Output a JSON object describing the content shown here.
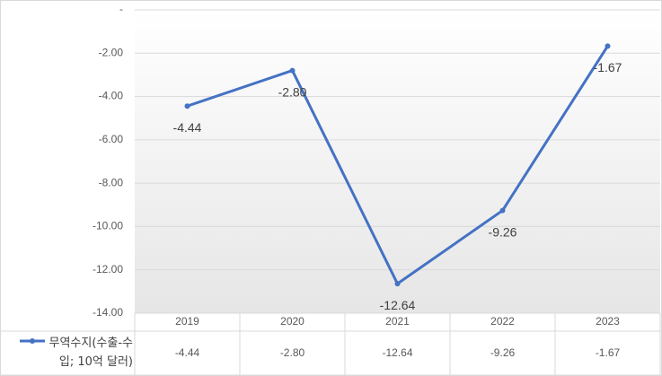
{
  "chart_data": {
    "type": "line",
    "categories": [
      "2019",
      "2020",
      "2021",
      "2022",
      "2023"
    ],
    "series": [
      {
        "name": "무역수지(수출-수입; 10억 달러)",
        "color": "#4472c4",
        "values": [
          -4.44,
          -2.8,
          -12.64,
          -9.26,
          -1.67
        ],
        "value_labels": [
          "-4.44",
          "-2.80",
          "-12.64",
          "-9.26",
          "-1.67"
        ]
      }
    ],
    "ylim": [
      -14,
      0
    ],
    "yticks": [
      {
        "value": -14,
        "label": "-14.00"
      },
      {
        "value": -12,
        "label": "-12.00"
      },
      {
        "value": -10,
        "label": "-10.00"
      },
      {
        "value": -8,
        "label": "-8.00"
      },
      {
        "value": -6,
        "label": "-6.00"
      },
      {
        "value": -4,
        "label": "-4.00"
      },
      {
        "value": -2,
        "label": "-2.00"
      },
      {
        "value": 0,
        "label": "-"
      }
    ],
    "grid": true,
    "data_table": true
  }
}
